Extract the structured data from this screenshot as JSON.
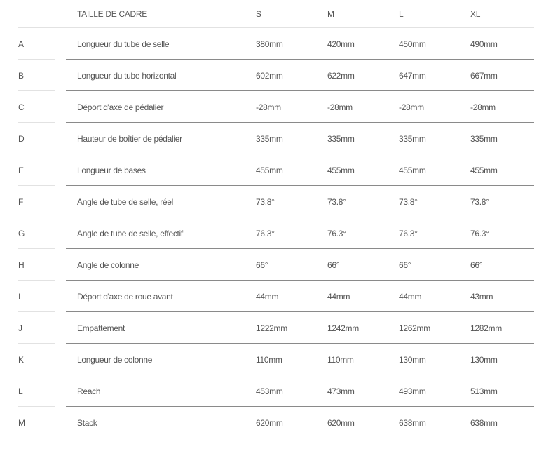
{
  "table": {
    "headers": [
      "",
      "TAILLE DE CADRE",
      "S",
      "M",
      "L",
      "XL"
    ],
    "rows": [
      {
        "key": "A",
        "label": "Longueur du tube de selle",
        "values": [
          "380mm",
          "420mm",
          "450mm",
          "490mm"
        ]
      },
      {
        "key": "B",
        "label": "Longueur du tube horizontal",
        "values": [
          "602mm",
          "622mm",
          "647mm",
          "667mm"
        ]
      },
      {
        "key": "C",
        "label": "Déport d'axe de pédalier",
        "values": [
          "-28mm",
          "-28mm",
          "-28mm",
          "-28mm"
        ]
      },
      {
        "key": "D",
        "label": "Hauteur de boîtier de pédalier",
        "values": [
          "335mm",
          "335mm",
          "335mm",
          "335mm"
        ]
      },
      {
        "key": "E",
        "label": "Longueur de bases",
        "values": [
          "455mm",
          "455mm",
          "455mm",
          "455mm"
        ]
      },
      {
        "key": "F",
        "label": "Angle de tube de selle, réel",
        "values": [
          "73.8°",
          "73.8°",
          "73.8°",
          "73.8°"
        ]
      },
      {
        "key": "G",
        "label": "Angle de tube de selle, effectif",
        "values": [
          "76.3°",
          "76.3°",
          "76.3°",
          "76.3°"
        ]
      },
      {
        "key": "H",
        "label": "Angle de colonne",
        "values": [
          "66°",
          "66°",
          "66°",
          "66°"
        ]
      },
      {
        "key": "I",
        "label": "Déport d'axe de roue avant",
        "values": [
          "44mm",
          "44mm",
          "44mm",
          "43mm"
        ]
      },
      {
        "key": "J",
        "label": "Empattement",
        "values": [
          "1222mm",
          "1242mm",
          "1262mm",
          "1282mm"
        ]
      },
      {
        "key": "K",
        "label": "Longueur de colonne",
        "values": [
          "110mm",
          "110mm",
          "130mm",
          "130mm"
        ]
      },
      {
        "key": "L",
        "label": "Reach",
        "values": [
          "453mm",
          "473mm",
          "493mm",
          "513mm"
        ]
      },
      {
        "key": "M",
        "label": "Stack",
        "values": [
          "620mm",
          "620mm",
          "638mm",
          "638mm"
        ]
      }
    ]
  }
}
